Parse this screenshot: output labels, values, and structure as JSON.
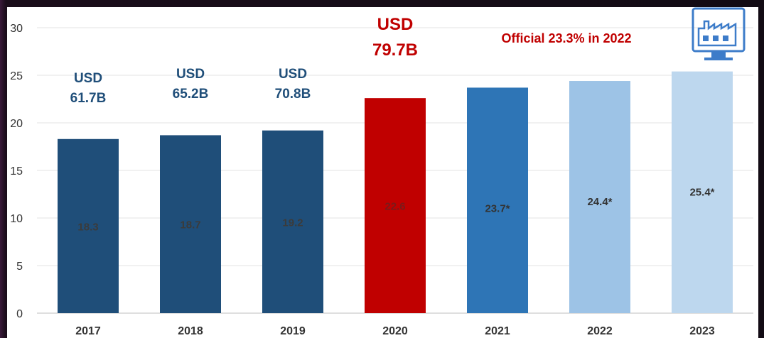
{
  "chart_data": {
    "type": "bar",
    "categories": [
      "2017",
      "2018",
      "2019",
      "2020",
      "2021",
      "2022",
      "2023"
    ],
    "values": [
      18.3,
      18.7,
      19.2,
      22.6,
      23.7,
      24.4,
      25.4
    ],
    "value_labels": [
      "18.3",
      "18.7",
      "19.2",
      "22.6",
      "23.7*",
      "24.4*",
      "25.4*"
    ],
    "bar_colors": [
      "#1f4e79",
      "#1f4e79",
      "#1f4e79",
      "#c00000",
      "#2e75b6",
      "#9dc3e6",
      "#bdd7ee"
    ],
    "value_label_colors": [
      "#3b3b3b",
      "#3b3b3b",
      "#3b3b3b",
      "#7a1a1a",
      "#333333",
      "#333333",
      "#333333"
    ],
    "usd_annotations": [
      {
        "category": "2017",
        "line1": "USD",
        "line2": "61.7B",
        "color": "#1f4e79"
      },
      {
        "category": "2018",
        "line1": "USD",
        "line2": "65.2B",
        "color": "#1f4e79"
      },
      {
        "category": "2019",
        "line1": "USD",
        "line2": "70.8B",
        "color": "#1f4e79"
      },
      {
        "category": "2020",
        "line1": "USD",
        "line2": "79.7B",
        "color": "#c00000"
      }
    ],
    "note": "Official 23.3% in 2022",
    "note_color": "#c00000",
    "yticks": [
      "0",
      "5",
      "10",
      "15",
      "20",
      "25",
      "30"
    ],
    "ylim": [
      0,
      30
    ],
    "grid": true,
    "title": "",
    "xlabel": "",
    "ylabel": ""
  },
  "icons": [
    "factory-monitor-icon"
  ]
}
